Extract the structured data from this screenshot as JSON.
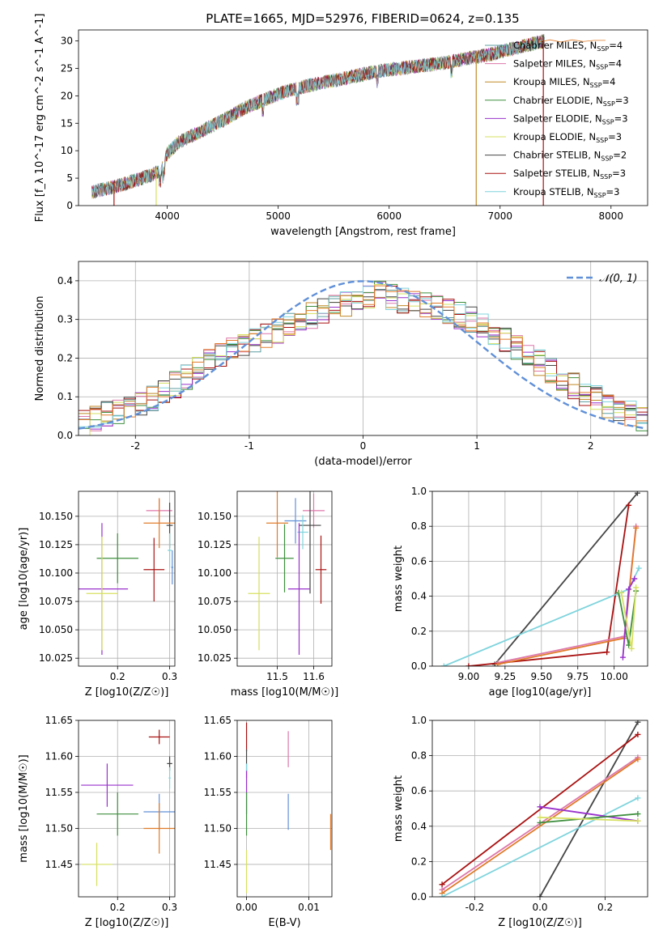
{
  "figure": {
    "title": "PLATE=1665, MJD=52976, FIBERID=0624, z=0.135"
  },
  "chart_data": [
    {
      "id": "spectrum",
      "type": "line",
      "title": "PLATE=1665, MJD=52976, FIBERID=0624, z=0.135",
      "xlabel": "wavelength [Angstrom, rest frame]",
      "ylabel": "Flux [f_λ 10^-17 erg cm^-2 s^-1 A^-1]",
      "xlim": [
        3200,
        8330
      ],
      "ylim": [
        0,
        32
      ],
      "xticks": [
        4000,
        5000,
        6000,
        7000,
        8000
      ],
      "yticks": [
        0,
        5,
        10,
        15,
        20,
        25,
        30
      ],
      "grid": false,
      "legend_position": "top-right",
      "continuum": {
        "x": [
          3320,
          3500,
          3700,
          3850,
          3950,
          4000,
          4100,
          4300,
          4500,
          4700,
          4900,
          5100,
          5300,
          5500,
          5700,
          5900,
          6100,
          6300,
          6500,
          6700,
          6900,
          7100,
          7300,
          7400
        ],
        "y": [
          2.5,
          3.3,
          4.5,
          5.5,
          6.5,
          9.5,
          11.5,
          13.5,
          15.5,
          17.8,
          19.5,
          21.0,
          22.0,
          22.8,
          23.6,
          24.5,
          25.0,
          25.5,
          26.0,
          26.8,
          27.5,
          28.5,
          29.5,
          30.0
        ]
      },
      "model_tail": {
        "x": [
          7350,
          7450,
          7550,
          7650,
          7750,
          7850,
          7950
        ],
        "y": [
          29.8,
          30.2,
          29.8,
          30.2,
          29.9,
          30.1,
          30.1
        ]
      },
      "series": [
        {
          "name": "Chabrier MILES",
          "nssp": "4",
          "color": "#5f9ea0"
        },
        {
          "name": "Salpeter MILES",
          "nssp": "4",
          "color": "#dd77aa"
        },
        {
          "name": "Kroupa MILES",
          "nssp": "4",
          "color": "#c08a28"
        },
        {
          "name": "Chabrier ELODIE",
          "nssp": "3",
          "color": "#3f8f3f"
        },
        {
          "name": "Salpeter ELODIE",
          "nssp": "3",
          "color": "#9932cc"
        },
        {
          "name": "Kroupa ELODIE",
          "nssp": "3",
          "color": "#d6e060"
        },
        {
          "name": "Chabrier STELIB",
          "nssp": "2",
          "color": "#444444"
        },
        {
          "name": "Salpeter STELIB",
          "nssp": "3",
          "color": "#aa1111"
        },
        {
          "name": "Kroupa STELIB",
          "nssp": "3",
          "color": "#7fd4dd"
        }
      ]
    },
    {
      "id": "residuals",
      "type": "line",
      "xlabel": "(data-model)/error",
      "ylabel": "Normed distribution",
      "xlim": [
        -2.5,
        2.5
      ],
      "ylim": [
        0,
        0.45
      ],
      "xticks": [
        -2,
        -1,
        0,
        1,
        2
      ],
      "yticks": [
        0.0,
        0.1,
        0.2,
        0.3,
        0.4
      ],
      "grid": true,
      "legend_position": "top-right",
      "reference_label": "𝒩(0, 1)",
      "reference_color": "#6090d8",
      "histogram_base": {
        "bin_width": 0.1,
        "x_start": -2.5,
        "values": [
          0.03,
          0.045,
          0.055,
          0.06,
          0.07,
          0.08,
          0.095,
          0.11,
          0.13,
          0.15,
          0.17,
          0.19,
          0.205,
          0.22,
          0.24,
          0.25,
          0.26,
          0.27,
          0.29,
          0.3,
          0.31,
          0.32,
          0.33,
          0.34,
          0.35,
          0.36,
          0.37,
          0.36,
          0.35,
          0.345,
          0.34,
          0.33,
          0.32,
          0.31,
          0.3,
          0.29,
          0.27,
          0.25,
          0.23,
          0.21,
          0.19,
          0.17,
          0.15,
          0.13,
          0.11,
          0.095,
          0.08,
          0.07,
          0.06,
          0.045
        ]
      }
    },
    {
      "id": "age-vs-z",
      "type": "scatter",
      "xlabel": "Z [log10(Z/Z☉)]",
      "ylabel": "age  [log10(age/yr)]",
      "xlim": [
        0.125,
        0.31
      ],
      "ylim": [
        10.018,
        10.172
      ],
      "xticks": [
        0.2,
        0.3
      ],
      "yticks": [
        10.025,
        10.05,
        10.075,
        10.1,
        10.125,
        10.15
      ],
      "grid": true,
      "points": [
        {
          "x": 0.28,
          "y": 10.155,
          "xerr": 0.025,
          "yerr": 0.01,
          "color": "#dd77aa"
        },
        {
          "x": 0.3,
          "y": 10.142,
          "xerr": 0.006,
          "yerr": 0.02,
          "color": "#444444"
        },
        {
          "x": 0.28,
          "y": 10.144,
          "xerr": 0.03,
          "yerr": 0.022,
          "color": "#e07b2a"
        },
        {
          "x": 0.3,
          "y": 10.12,
          "xerr": 0.004,
          "yerr": 0.015,
          "color": "#7fd4dd"
        },
        {
          "x": 0.27,
          "y": 10.103,
          "xerr": 0.02,
          "yerr": 0.028,
          "color": "#aa1111"
        },
        {
          "x": 0.2,
          "y": 10.113,
          "xerr": 0.04,
          "yerr": 0.022,
          "color": "#3f8f3f"
        },
        {
          "x": 0.17,
          "y": 10.086,
          "xerr": 0.05,
          "yerr": 0.058,
          "color": "#9932cc"
        },
        {
          "x": 0.17,
          "y": 10.082,
          "xerr": 0.03,
          "yerr": 0.05,
          "color": "#d6e060"
        },
        {
          "x": 0.305,
          "y": 10.105,
          "xerr": 0.002,
          "yerr": 0.015,
          "color": "#6090d8"
        }
      ]
    },
    {
      "id": "age-vs-mass",
      "type": "scatter",
      "xlabel": "mass [log10(M/M☉)]",
      "ylabel": "",
      "xlim": [
        11.39,
        11.65
      ],
      "ylim": [
        10.018,
        10.172
      ],
      "xticks": [
        11.5,
        11.6
      ],
      "yticks": [
        10.025,
        10.05,
        10.075,
        10.1,
        10.125,
        10.15
      ],
      "grid": true,
      "points": [
        {
          "x": 11.6,
          "y": 10.155,
          "xerr": 0.03,
          "yerr": 0.015,
          "color": "#dd77aa"
        },
        {
          "x": 11.55,
          "y": 10.146,
          "xerr": 0.03,
          "yerr": 0.02,
          "color": "#6090d8"
        },
        {
          "x": 11.5,
          "y": 10.144,
          "xerr": 0.03,
          "yerr": 0.03,
          "color": "#e07b2a"
        },
        {
          "x": 11.59,
          "y": 10.142,
          "xerr": 0.03,
          "yerr": 0.06,
          "color": "#444444"
        },
        {
          "x": 11.57,
          "y": 10.136,
          "xerr": 0.015,
          "yerr": 0.015,
          "color": "#7fd4dd"
        },
        {
          "x": 11.52,
          "y": 10.113,
          "xerr": 0.025,
          "yerr": 0.03,
          "color": "#3f8f3f"
        },
        {
          "x": 11.62,
          "y": 10.103,
          "xerr": 0.015,
          "yerr": 0.03,
          "color": "#aa1111"
        },
        {
          "x": 11.56,
          "y": 10.086,
          "xerr": 0.03,
          "yerr": 0.058,
          "color": "#9932cc"
        },
        {
          "x": 11.45,
          "y": 10.082,
          "xerr": 0.03,
          "yerr": 0.05,
          "color": "#d6e060"
        }
      ]
    },
    {
      "id": "weight-vs-age",
      "type": "line",
      "xlabel": "age  [log10(age/yr)]",
      "ylabel": "mass weight",
      "xlim": [
        8.75,
        10.23
      ],
      "ylim": [
        0,
        1
      ],
      "xticks": [
        9.0,
        9.25,
        9.5,
        9.75,
        10.0
      ],
      "yticks": [
        0.0,
        0.2,
        0.4,
        0.6,
        0.8,
        1.0
      ],
      "grid": true,
      "series": [
        {
          "color": "#444444",
          "x": [
            9.18,
            10.16
          ],
          "y": [
            0.01,
            0.99
          ]
        },
        {
          "color": "#aa1111",
          "x": [
            9.0,
            9.95,
            10.1
          ],
          "y": [
            0.0,
            0.08,
            0.92
          ]
        },
        {
          "color": "#7fd4dd",
          "x": [
            8.83,
            10.1,
            10.17
          ],
          "y": [
            0.0,
            0.44,
            0.56
          ]
        },
        {
          "color": "#dd77aa",
          "x": [
            9.2,
            10.07,
            10.15
          ],
          "y": [
            0.02,
            0.17,
            0.8
          ]
        },
        {
          "color": "#e07b2a",
          "x": [
            9.2,
            10.07,
            10.15
          ],
          "y": [
            0.01,
            0.16,
            0.79
          ]
        },
        {
          "color": "#3f8f3f",
          "x": [
            10.03,
            10.1,
            10.15
          ],
          "y": [
            0.42,
            0.12,
            0.43
          ]
        },
        {
          "color": "#9932cc",
          "x": [
            10.06,
            10.1,
            10.14
          ],
          "y": [
            0.05,
            0.44,
            0.5
          ]
        },
        {
          "color": "#d6e060",
          "x": [
            10.05,
            10.12,
            10.15
          ],
          "y": [
            0.42,
            0.1,
            0.45
          ]
        }
      ]
    },
    {
      "id": "mass-vs-z",
      "type": "scatter",
      "xlabel": "Z [log10(Z/Z☉)]",
      "ylabel": "mass [log10(M/M☉)]",
      "xlim": [
        0.125,
        0.31
      ],
      "ylim": [
        11.405,
        11.65
      ],
      "xticks": [
        0.2,
        0.3
      ],
      "yticks": [
        11.45,
        11.5,
        11.55,
        11.6,
        11.65
      ],
      "grid": true,
      "points": [
        {
          "x": 0.28,
          "y": 11.627,
          "xerr": 0.02,
          "yerr": 0.01,
          "color": "#aa1111"
        },
        {
          "x": 0.3,
          "y": 11.59,
          "xerr": 0.005,
          "yerr": 0.01,
          "color": "#444444"
        },
        {
          "x": 0.3,
          "y": 11.57,
          "xerr": 0.002,
          "yerr": 0.015,
          "color": "#7fd4dd"
        },
        {
          "x": 0.18,
          "y": 11.56,
          "xerr": 0.05,
          "yerr": 0.03,
          "color": "#9932cc"
        },
        {
          "x": 0.2,
          "y": 11.52,
          "xerr": 0.04,
          "yerr": 0.03,
          "color": "#3f8f3f"
        },
        {
          "x": 0.28,
          "y": 11.523,
          "xerr": 0.03,
          "yerr": 0.025,
          "color": "#6090d8"
        },
        {
          "x": 0.28,
          "y": 11.5,
          "xerr": 0.03,
          "yerr": 0.035,
          "color": "#e07b2a"
        },
        {
          "x": 0.16,
          "y": 11.45,
          "xerr": 0.03,
          "yerr": 0.03,
          "color": "#d6e060"
        }
      ]
    },
    {
      "id": "mass-vs-ebv",
      "type": "scatter",
      "xlabel": "E(B-V)",
      "ylabel": "",
      "xlim": [
        -0.0015,
        0.0137
      ],
      "ylim": [
        11.405,
        11.65
      ],
      "xticks": [
        0.0,
        0.01
      ],
      "yticks": [
        11.45,
        11.5,
        11.55,
        11.6,
        11.65
      ],
      "grid": true,
      "points": [
        {
          "x": 0.0,
          "y": 11.627,
          "xerr": 0.0,
          "yerr": 0.02,
          "color": "#aa1111"
        },
        {
          "x": 0.0,
          "y": 11.59,
          "xerr": 0.0,
          "yerr": 0.02,
          "color": "#444444"
        },
        {
          "x": 0.0,
          "y": 11.57,
          "xerr": 0.0,
          "yerr": 0.02,
          "color": "#7fd4dd"
        },
        {
          "x": 0.0,
          "y": 11.55,
          "xerr": 0.0,
          "yerr": 0.03,
          "color": "#9932cc"
        },
        {
          "x": 0.0,
          "y": 11.52,
          "xerr": 0.0,
          "yerr": 0.03,
          "color": "#3f8f3f"
        },
        {
          "x": 0.0,
          "y": 11.44,
          "xerr": 0.0,
          "yerr": 0.03,
          "color": "#d6e060"
        },
        {
          "x": 0.0067,
          "y": 11.61,
          "xerr": 0.0,
          "yerr": 0.025,
          "color": "#dd77aa"
        },
        {
          "x": 0.0067,
          "y": 11.523,
          "xerr": 0.0,
          "yerr": 0.025,
          "color": "#6090d8"
        },
        {
          "x": 0.0135,
          "y": 11.495,
          "xerr": 0.0,
          "yerr": 0.025,
          "color": "#e07b2a"
        }
      ]
    },
    {
      "id": "weight-vs-z",
      "type": "line",
      "xlabel": "Z [log10(Z/Z☉)]",
      "ylabel": "mass weight",
      "xlim": [
        -0.33,
        0.33
      ],
      "ylim": [
        0,
        1
      ],
      "xticks": [
        -0.2,
        0.0,
        0.2
      ],
      "yticks": [
        0.0,
        0.2,
        0.4,
        0.6,
        0.8,
        1.0
      ],
      "grid": true,
      "series": [
        {
          "color": "#444444",
          "x": [
            0.0,
            0.3
          ],
          "y": [
            0.0,
            0.99
          ]
        },
        {
          "color": "#aa1111",
          "x": [
            -0.3,
            0.3
          ],
          "y": [
            0.07,
            0.92
          ]
        },
        {
          "color": "#dd77aa",
          "x": [
            -0.3,
            0.3
          ],
          "y": [
            0.04,
            0.79
          ]
        },
        {
          "color": "#e07b2a",
          "x": [
            -0.3,
            0.3
          ],
          "y": [
            0.02,
            0.78
          ]
        },
        {
          "color": "#7fd4dd",
          "x": [
            -0.3,
            0.3
          ],
          "y": [
            0.0,
            0.56
          ]
        },
        {
          "color": "#9932cc",
          "x": [
            0.0,
            0.3
          ],
          "y": [
            0.51,
            0.43
          ]
        },
        {
          "color": "#3f8f3f",
          "x": [
            0.0,
            0.3
          ],
          "y": [
            0.42,
            0.47
          ]
        },
        {
          "color": "#d6e060",
          "x": [
            0.0,
            0.3
          ],
          "y": [
            0.45,
            0.43
          ]
        }
      ]
    }
  ]
}
